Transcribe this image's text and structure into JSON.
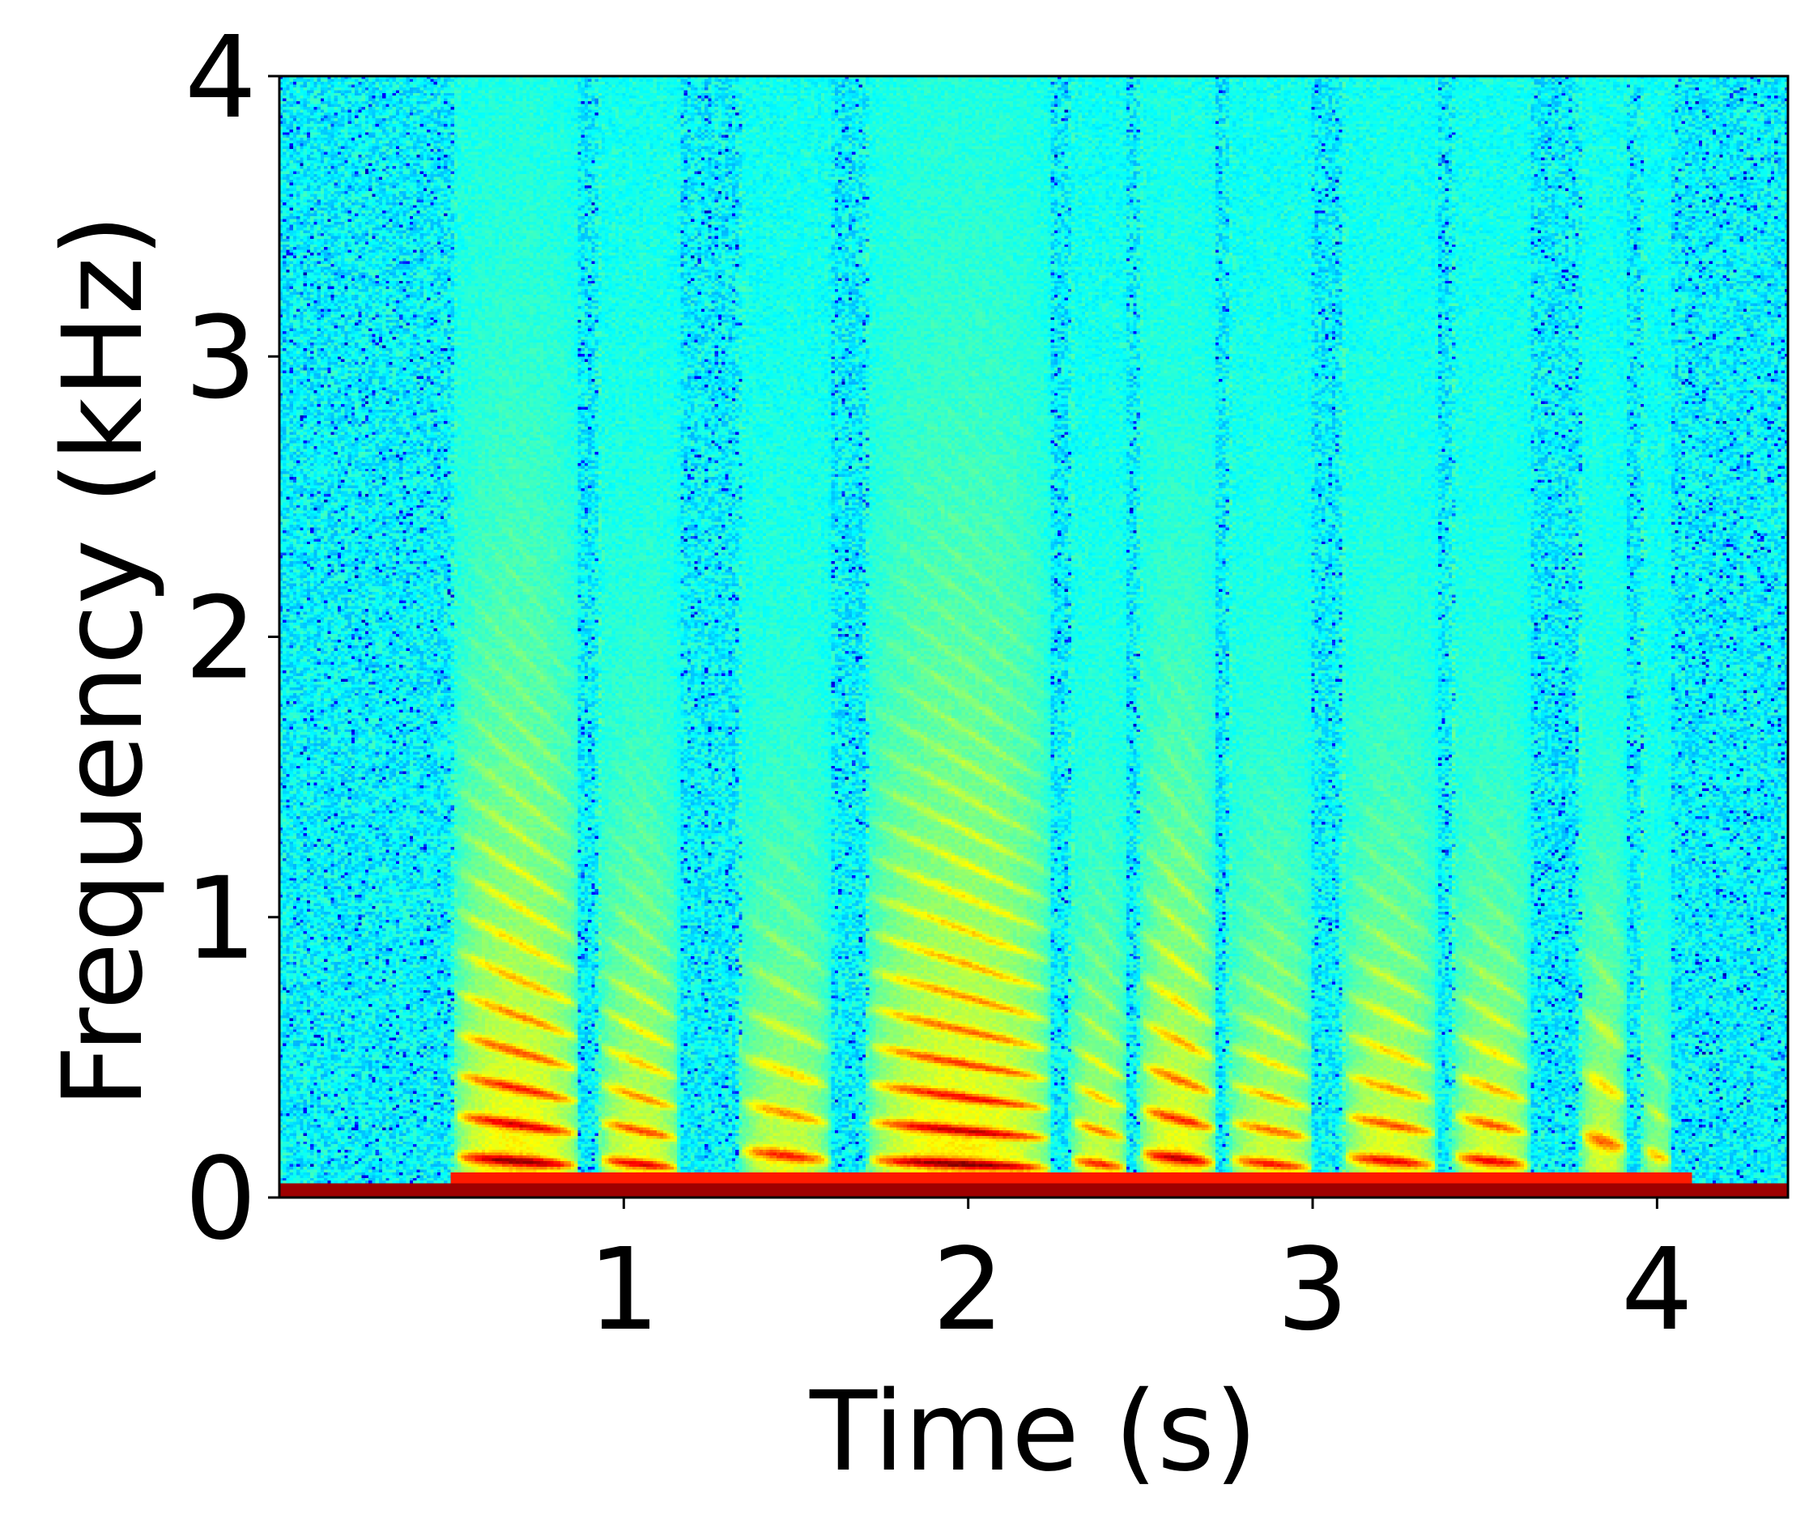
{
  "chart_data": {
    "type": "heatmap",
    "title": "",
    "xlabel": "Time (s)",
    "ylabel": "Frequency (kHz)",
    "xlim": [
      0,
      4.38
    ],
    "ylim": [
      0,
      4
    ],
    "xticks": [
      1,
      2,
      3,
      4
    ],
    "yticks": [
      0,
      1,
      2,
      3,
      4
    ],
    "x_tick_labels": [
      "1",
      "2",
      "3",
      "4"
    ],
    "y_tick_labels": [
      "0",
      "1",
      "2",
      "3",
      "4"
    ],
    "colormap": "jet",
    "grid": false,
    "legend": "none",
    "dc_band_khz": 0.05,
    "segments": [
      {
        "start": 0.51,
        "end": 0.87,
        "f0_khz": 0.13,
        "bandwidth_khz": 1.5,
        "strength": 1.0
      },
      {
        "start": 0.93,
        "end": 1.16,
        "f0_khz": 0.12,
        "bandwidth_khz": 1.0,
        "strength": 0.9
      },
      {
        "start": 1.34,
        "end": 1.6,
        "f0_khz": 0.15,
        "bandwidth_khz": 0.9,
        "strength": 0.85
      },
      {
        "start": 1.71,
        "end": 2.24,
        "f0_khz": 0.12,
        "bandwidth_khz": 1.6,
        "strength": 1.0
      },
      {
        "start": 2.3,
        "end": 2.46,
        "f0_khz": 0.12,
        "bandwidth_khz": 0.8,
        "strength": 0.85
      },
      {
        "start": 2.5,
        "end": 2.72,
        "f0_khz": 0.14,
        "bandwidth_khz": 1.2,
        "strength": 0.95
      },
      {
        "start": 2.76,
        "end": 3.0,
        "f0_khz": 0.12,
        "bandwidth_khz": 0.9,
        "strength": 0.85
      },
      {
        "start": 3.09,
        "end": 3.36,
        "f0_khz": 0.13,
        "bandwidth_khz": 1.0,
        "strength": 0.9
      },
      {
        "start": 3.41,
        "end": 3.63,
        "f0_khz": 0.13,
        "bandwidth_khz": 0.9,
        "strength": 0.9
      },
      {
        "start": 3.78,
        "end": 3.91,
        "f0_khz": 0.2,
        "bandwidth_khz": 0.8,
        "strength": 0.85
      },
      {
        "start": 3.96,
        "end": 4.04,
        "f0_khz": 0.15,
        "bandwidth_khz": 0.5,
        "strength": 0.7
      }
    ]
  }
}
